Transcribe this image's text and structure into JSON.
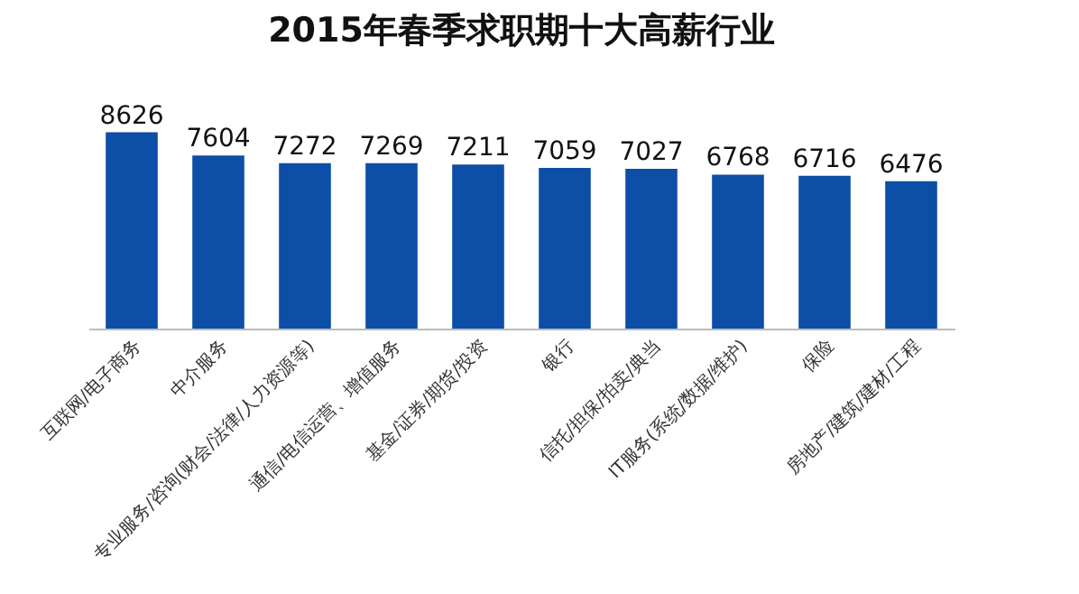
{
  "chart_data": {
    "type": "bar",
    "title": "2015年春季求职期十大高薪行业",
    "categories": [
      "互联网/电子商务",
      "中介服务",
      "专业服务/咨询(财会/法律/人力资源等)",
      "通信/电信运营、增值服务",
      "基金/证券/期货/投资",
      "银行",
      "信托/担保/拍卖/典当",
      "IT服务(系统/数据/维护)",
      "保险",
      "房地产/建筑/建材/工程"
    ],
    "values": [
      8626,
      7604,
      7272,
      7269,
      7211,
      7059,
      7027,
      6768,
      6716,
      6476
    ],
    "color": "#0d4ea6",
    "data_labels": true
  }
}
